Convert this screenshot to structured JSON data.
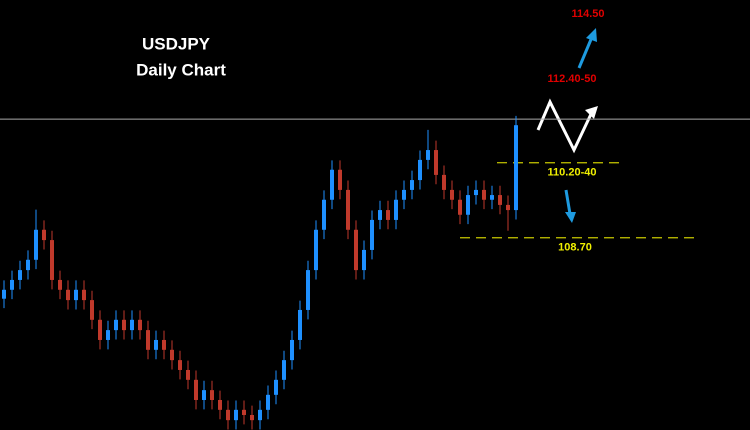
{
  "chart_data": {
    "type": "candlestick",
    "title": "USDJPY",
    "subtitle": "Daily Chart",
    "ylim": [
      104.6,
      113.77
    ],
    "up_color": "#1e90ff",
    "down_color": "#c0392b",
    "reference_line": 111.23,
    "levels": [
      {
        "value": 110.3,
        "label": "110.20-40"
      },
      {
        "value": 108.7,
        "label": "108.70"
      }
    ],
    "annotations": [
      "112.40-50",
      "114.50"
    ],
    "open": [
      107.4,
      107.59,
      107.8,
      108.01,
      108.23,
      108.87,
      108.65,
      107.8,
      107.59,
      107.37,
      107.59,
      107.37,
      106.95,
      106.52,
      106.73,
      106.95,
      106.73,
      106.95,
      106.73,
      106.31,
      106.52,
      106.31,
      106.09,
      105.88,
      105.67,
      105.24,
      105.45,
      105.24,
      105.03,
      104.81,
      105.03,
      104.92,
      104.81,
      105.03,
      105.35,
      105.67,
      106.09,
      106.52,
      107.16,
      108.01,
      108.87,
      109.51,
      110.15,
      109.72,
      108.87,
      108.01,
      108.44,
      109.08,
      109.29,
      109.08,
      109.51,
      109.72,
      109.93,
      110.36,
      110.57,
      110.04,
      109.72,
      109.51,
      109.19,
      109.61,
      109.72,
      109.51,
      109.61,
      109.4,
      109.29
    ],
    "high": [
      107.79,
      108.0,
      108.21,
      108.43,
      109.3,
      109.07,
      108.85,
      108.0,
      107.79,
      107.79,
      107.79,
      107.57,
      107.15,
      106.93,
      107.15,
      107.15,
      107.15,
      107.15,
      106.93,
      106.72,
      106.72,
      106.51,
      106.29,
      106.08,
      105.87,
      105.65,
      105.65,
      105.44,
      105.23,
      105.23,
      105.23,
      105.12,
      105.23,
      105.55,
      105.87,
      106.29,
      106.72,
      107.36,
      108.21,
      109.07,
      109.71,
      110.35,
      110.35,
      109.92,
      109.07,
      108.64,
      109.28,
      109.49,
      109.49,
      109.71,
      109.92,
      110.13,
      110.56,
      111.0,
      110.77,
      110.24,
      109.92,
      109.71,
      109.81,
      109.92,
      109.92,
      109.81,
      109.81,
      109.6,
      111.3
    ],
    "low": [
      107.2,
      107.39,
      107.6,
      107.81,
      108.03,
      108.45,
      107.6,
      107.39,
      107.17,
      107.17,
      107.17,
      106.75,
      106.32,
      106.32,
      106.53,
      106.53,
      106.53,
      106.53,
      106.11,
      106.11,
      106.11,
      105.89,
      105.68,
      105.47,
      105.04,
      105.04,
      105.04,
      104.83,
      104.61,
      104.61,
      104.72,
      104.61,
      104.61,
      104.83,
      105.15,
      105.47,
      105.89,
      106.32,
      106.96,
      107.81,
      108.67,
      109.31,
      109.52,
      108.67,
      107.81,
      107.81,
      108.24,
      108.88,
      108.88,
      108.88,
      109.31,
      109.52,
      109.73,
      110.16,
      109.84,
      109.52,
      109.31,
      108.99,
      108.99,
      109.41,
      109.31,
      109.31,
      109.2,
      108.85,
      109.09
    ],
    "close": [
      107.59,
      107.8,
      108.01,
      108.23,
      108.87,
      108.65,
      107.8,
      107.59,
      107.37,
      107.59,
      107.37,
      106.95,
      106.52,
      106.73,
      106.95,
      106.73,
      106.95,
      106.73,
      106.31,
      106.52,
      106.31,
      106.09,
      105.88,
      105.67,
      105.24,
      105.45,
      105.24,
      105.03,
      104.81,
      105.03,
      104.92,
      104.81,
      105.03,
      105.35,
      105.67,
      106.09,
      106.52,
      107.16,
      108.01,
      108.87,
      109.51,
      110.15,
      109.72,
      108.87,
      108.01,
      108.44,
      109.08,
      109.29,
      109.08,
      109.51,
      109.72,
      109.93,
      110.36,
      110.57,
      110.04,
      109.72,
      109.51,
      109.19,
      109.61,
      109.72,
      109.51,
      109.61,
      109.4,
      109.29,
      111.1
    ]
  }
}
